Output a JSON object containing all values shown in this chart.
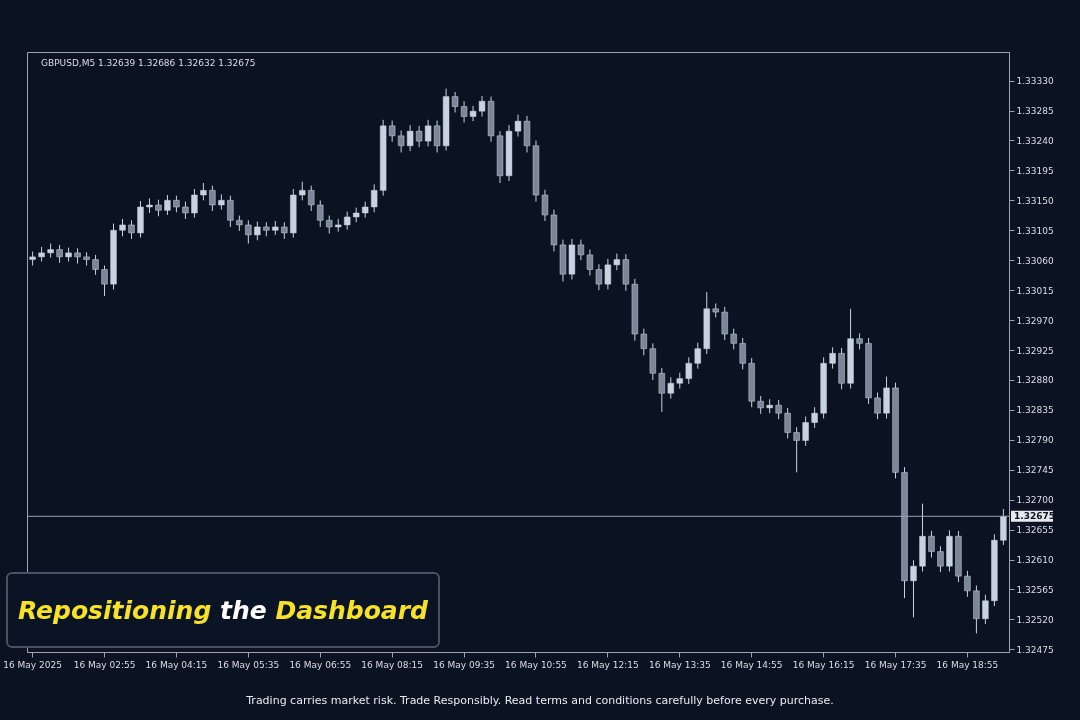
{
  "chart_data": {
    "type": "candlestick",
    "title": "GBPUSD,M5  1.32639 1.32686 1.32632 1.32675",
    "color": "#c9d2e0",
    "grid": false,
    "categories": [
      "16 May 2025",
      null,
      null,
      null,
      null,
      null,
      null,
      null,
      "16 May 02:55",
      null,
      null,
      null,
      null,
      null,
      null,
      null,
      "16 May 04:15",
      null,
      null,
      null,
      null,
      null,
      null,
      null,
      "16 May 05:35",
      null,
      null,
      null,
      null,
      null,
      null,
      null,
      "16 May 06:55",
      null,
      null,
      null,
      null,
      null,
      null,
      null,
      "16 May 08:15",
      null,
      null,
      null,
      null,
      null,
      null,
      null,
      "16 May 09:35",
      null,
      null,
      null,
      null,
      null,
      null,
      null,
      "16 May 10:55",
      null,
      null,
      null,
      null,
      null,
      null,
      null,
      "16 May 12:15",
      null,
      null,
      null,
      null,
      null,
      null,
      null,
      "16 May 13:35",
      null,
      null,
      null,
      null,
      null,
      null,
      null,
      "16 May 14:55",
      null,
      null,
      null,
      null,
      null,
      null,
      null,
      "16 May 16:15",
      null,
      null,
      null,
      null,
      null,
      null,
      null,
      "16 May 17:35",
      null,
      null,
      null,
      null,
      null,
      null,
      null,
      "16 May 18:55",
      null,
      null,
      null,
      null
    ],
    "ohlc": [
      [
        1.33061,
        1.33073,
        1.33052,
        1.33065
      ],
      [
        1.33065,
        1.3308,
        1.33058,
        1.33071
      ],
      [
        1.33071,
        1.33085,
        1.33064,
        1.33076
      ],
      [
        1.33076,
        1.33083,
        1.33056,
        1.33065
      ],
      [
        1.33065,
        1.33079,
        1.33058,
        1.33071
      ],
      [
        1.33071,
        1.33078,
        1.33055,
        1.33065
      ],
      [
        1.33065,
        1.33072,
        1.33052,
        1.33061
      ],
      [
        1.33061,
        1.33068,
        1.33038,
        1.33046
      ],
      [
        1.33046,
        1.33052,
        1.33006,
        1.33024
      ],
      [
        1.33024,
        1.33115,
        1.33016,
        1.33105
      ],
      [
        1.33105,
        1.33122,
        1.33096,
        1.33113
      ],
      [
        1.33113,
        1.3312,
        1.33092,
        1.33101
      ],
      [
        1.33101,
        1.33149,
        1.33094,
        1.3314
      ],
      [
        1.3314,
        1.33153,
        1.33131,
        1.33143
      ],
      [
        1.33143,
        1.33151,
        1.33126,
        1.33135
      ],
      [
        1.33135,
        1.33158,
        1.33128,
        1.3315
      ],
      [
        1.3315,
        1.33157,
        1.33132,
        1.3314
      ],
      [
        1.3314,
        1.33148,
        1.33122,
        1.33131
      ],
      [
        1.33131,
        1.33167,
        1.33124,
        1.33158
      ],
      [
        1.33158,
        1.33176,
        1.3315,
        1.33165
      ],
      [
        1.33165,
        1.33172,
        1.33134,
        1.33143
      ],
      [
        1.33143,
        1.33159,
        1.33136,
        1.3315
      ],
      [
        1.3315,
        1.33157,
        1.3311,
        1.3312
      ],
      [
        1.3312,
        1.33127,
        1.33104,
        1.33113
      ],
      [
        1.33113,
        1.3312,
        1.33085,
        1.33098
      ],
      [
        1.33098,
        1.33118,
        1.3309,
        1.3311
      ],
      [
        1.3311,
        1.33117,
        1.33096,
        1.33105
      ],
      [
        1.33105,
        1.33119,
        1.33098,
        1.3311
      ],
      [
        1.3311,
        1.33117,
        1.33092,
        1.33101
      ],
      [
        1.33101,
        1.33167,
        1.33094,
        1.33158
      ],
      [
        1.33158,
        1.33178,
        1.3315,
        1.33165
      ],
      [
        1.33165,
        1.33172,
        1.33134,
        1.33143
      ],
      [
        1.33143,
        1.3315,
        1.3311,
        1.3312
      ],
      [
        1.3312,
        1.33127,
        1.331,
        1.3311
      ],
      [
        1.3311,
        1.33122,
        1.33103,
        1.33113
      ],
      [
        1.33113,
        1.33133,
        1.33106,
        1.33125
      ],
      [
        1.33125,
        1.33139,
        1.33117,
        1.33131
      ],
      [
        1.33131,
        1.33148,
        1.33124,
        1.3314
      ],
      [
        1.3314,
        1.33174,
        1.33132,
        1.33165
      ],
      [
        1.33165,
        1.33271,
        1.33157,
        1.33262
      ],
      [
        1.33262,
        1.3327,
        1.33238,
        1.33247
      ],
      [
        1.33247,
        1.33255,
        1.33222,
        1.33232
      ],
      [
        1.33232,
        1.33263,
        1.33224,
        1.33254
      ],
      [
        1.33254,
        1.33262,
        1.3323,
        1.33239
      ],
      [
        1.33239,
        1.33271,
        1.33231,
        1.33262
      ],
      [
        1.33262,
        1.3327,
        1.33222,
        1.33232
      ],
      [
        1.33232,
        1.33318,
        1.33225,
        1.33306
      ],
      [
        1.33306,
        1.33313,
        1.33282,
        1.33291
      ],
      [
        1.33291,
        1.33299,
        1.33267,
        1.33276
      ],
      [
        1.33276,
        1.33292,
        1.33269,
        1.33284
      ],
      [
        1.33284,
        1.33307,
        1.33276,
        1.33299
      ],
      [
        1.33299,
        1.33306,
        1.33238,
        1.33247
      ],
      [
        1.33247,
        1.33254,
        1.33176,
        1.33187
      ],
      [
        1.33187,
        1.33263,
        1.33179,
        1.33254
      ],
      [
        1.33254,
        1.33279,
        1.33246,
        1.33269
      ],
      [
        1.33269,
        1.33277,
        1.33222,
        1.33232
      ],
      [
        1.33232,
        1.3324,
        1.33148,
        1.33158
      ],
      [
        1.33158,
        1.33166,
        1.33119,
        1.33128
      ],
      [
        1.33128,
        1.33136,
        1.33073,
        1.33083
      ],
      [
        1.33083,
        1.33091,
        1.33028,
        1.33039
      ],
      [
        1.33039,
        1.33092,
        1.33031,
        1.33083
      ],
      [
        1.33083,
        1.33091,
        1.3306,
        1.33068
      ],
      [
        1.33068,
        1.33076,
        1.33037,
        1.33046
      ],
      [
        1.33046,
        1.33054,
        1.33015,
        1.33024
      ],
      [
        1.33024,
        1.33062,
        1.33016,
        1.33053
      ],
      [
        1.33053,
        1.3307,
        1.33045,
        1.33061
      ],
      [
        1.33061,
        1.33069,
        1.33014,
        1.33024
      ],
      [
        1.33024,
        1.33032,
        1.32939,
        1.32949
      ],
      [
        1.32949,
        1.32957,
        1.32917,
        1.32927
      ],
      [
        1.32927,
        1.32935,
        1.3288,
        1.3289
      ],
      [
        1.3289,
        1.32898,
        1.32832,
        1.3286
      ],
      [
        1.3286,
        1.32884,
        1.32852,
        1.32875
      ],
      [
        1.32875,
        1.32891,
        1.32867,
        1.32882
      ],
      [
        1.32882,
        1.32914,
        1.32874,
        1.32905
      ],
      [
        1.32905,
        1.32936,
        1.32897,
        1.32927
      ],
      [
        1.32927,
        1.33012,
        1.32919,
        1.32987
      ],
      [
        1.32987,
        1.32995,
        1.32974,
        1.32982
      ],
      [
        1.32982,
        1.3299,
        1.3294,
        1.32949
      ],
      [
        1.32949,
        1.32957,
        1.32926,
        1.32935
      ],
      [
        1.32935,
        1.32943,
        1.32896,
        1.32905
      ],
      [
        1.32905,
        1.32913,
        1.32839,
        1.32848
      ],
      [
        1.32848,
        1.32856,
        1.32829,
        1.32838
      ],
      [
        1.32838,
        1.32851,
        1.3283,
        1.32842
      ],
      [
        1.32842,
        1.3285,
        1.32821,
        1.3283
      ],
      [
        1.3283,
        1.32838,
        1.32792,
        1.32801
      ],
      [
        1.32801,
        1.32809,
        1.32741,
        1.32789
      ],
      [
        1.32789,
        1.32825,
        1.32781,
        1.32816
      ],
      [
        1.32816,
        1.32839,
        1.32808,
        1.3283
      ],
      [
        1.3283,
        1.32914,
        1.32822,
        1.32905
      ],
      [
        1.32905,
        1.32929,
        1.32897,
        1.3292
      ],
      [
        1.3292,
        1.32928,
        1.32866,
        1.32875
      ],
      [
        1.32875,
        1.32987,
        1.32867,
        1.32942
      ],
      [
        1.32942,
        1.3295,
        1.32926,
        1.32935
      ],
      [
        1.32935,
        1.32943,
        1.32844,
        1.32853
      ],
      [
        1.32853,
        1.32861,
        1.32821,
        1.3283
      ],
      [
        1.3283,
        1.32885,
        1.32822,
        1.32868
      ],
      [
        1.32868,
        1.32876,
        1.32732,
        1.32741
      ],
      [
        1.32741,
        1.32749,
        1.32552,
        1.32578
      ],
      [
        1.32578,
        1.32609,
        1.32523,
        1.326
      ],
      [
        1.326,
        1.32694,
        1.32592,
        1.32645
      ],
      [
        1.32645,
        1.32653,
        1.32613,
        1.32622
      ],
      [
        1.32622,
        1.3263,
        1.32591,
        1.326
      ],
      [
        1.326,
        1.32654,
        1.32592,
        1.32645
      ],
      [
        1.32645,
        1.32653,
        1.32576,
        1.32585
      ],
      [
        1.32585,
        1.32593,
        1.32554,
        1.32563
      ],
      [
        1.32563,
        1.32571,
        1.32499,
        1.32521
      ],
      [
        1.32521,
        1.32557,
        1.32513,
        1.32548
      ],
      [
        1.32548,
        1.32648,
        1.3254,
        1.32639
      ],
      [
        1.32639,
        1.32686,
        1.32632,
        1.32675
      ]
    ],
    "ylim": [
      1.32471,
      1.33373
    ],
    "yticks": [
      {
        "value": 1.3333,
        "label": "1.33330"
      },
      1.33285,
      {
        "value": 1.3324,
        "label": "1.33240"
      },
      1.33195,
      {
        "value": 1.3315,
        "label": "1.33150"
      },
      1.33105,
      {
        "value": 1.3306,
        "label": "1.33060"
      },
      1.33015,
      {
        "value": 1.3297,
        "label": "1.32970"
      },
      1.32925,
      {
        "value": 1.3288,
        "label": "1.32880"
      },
      1.32835,
      {
        "value": 1.3279,
        "label": "1.32790"
      },
      1.32745,
      {
        "value": 1.327,
        "label": "1.32700"
      },
      1.32655,
      {
        "value": 1.3261,
        "label": "1.32610"
      },
      1.32565,
      {
        "value": 1.3252,
        "label": "1.32520"
      },
      1.32475
    ],
    "ref_lines": [
      {
        "axis": "y",
        "value": 1.32675,
        "label": "1.32675",
        "color": "#9aa3b2"
      }
    ],
    "annotations": [
      "Repositioning the Dashboard",
      "Trading carries market risk. Trade Responsibly. Read terms and conditions carefully before every purchase."
    ]
  }
}
